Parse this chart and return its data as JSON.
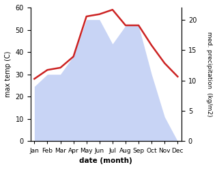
{
  "months": [
    "Jan",
    "Feb",
    "Mar",
    "Apr",
    "May",
    "Jun",
    "Jul",
    "Aug",
    "Sep",
    "Oct",
    "Nov",
    "Dec"
  ],
  "month_positions": [
    0,
    1,
    2,
    3,
    4,
    5,
    6,
    7,
    8,
    9,
    10,
    11
  ],
  "max_temp": [
    28,
    32,
    33,
    38,
    56,
    57,
    59,
    52,
    52,
    43,
    35,
    29
  ],
  "precipitation": [
    9,
    11,
    11,
    14,
    20,
    20,
    16,
    19,
    19,
    11,
    4,
    0
  ],
  "temp_color": "#cc2222",
  "precip_fill_color": "#c8d4f5",
  "temp_ylim": [
    0,
    60
  ],
  "precip_ylim": [
    0,
    22
  ],
  "precip_yticks": [
    0,
    5,
    10,
    15,
    20
  ],
  "temp_yticks": [
    0,
    10,
    20,
    30,
    40,
    50,
    60
  ],
  "xlabel": "date (month)",
  "ylabel_left": "max temp (C)",
  "ylabel_right": "med. precipitation  (kg/m2)",
  "background_color": "#ffffff"
}
